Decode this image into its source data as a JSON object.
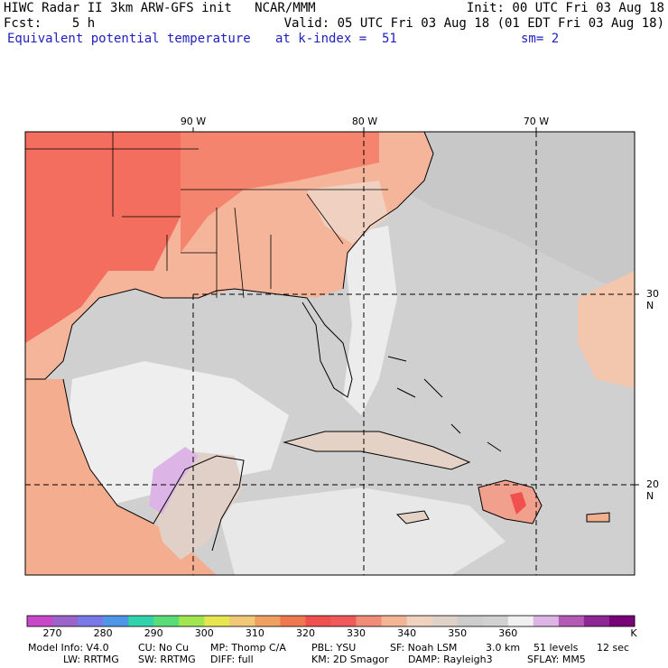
{
  "header": {
    "title_left": "HIWC Radar II 3km ARW-GFS init   NCAR/MMM",
    "init": "Init: 00 UTC Fri 03 Aug 18",
    "fcst": "Fcst:    5 h",
    "valid": "Valid: 05 UTC Fri 03 Aug 18 (01 EDT Fri 03 Aug 18)",
    "field": "Equivalent potential temperature",
    "level": "at k-index =  51",
    "smooth": "sm= 2"
  },
  "map": {
    "lon_labels": [
      "90 W",
      "80 W",
      "70 W"
    ],
    "lat_labels": [
      "30 N",
      "20 N"
    ]
  },
  "colorbar": {
    "labels": [
      "270",
      "280",
      "290",
      "300",
      "310",
      "320",
      "330",
      "340",
      "350",
      "360"
    ],
    "unit": "K",
    "colors": [
      "#c848c8",
      "#9c64c8",
      "#7878e6",
      "#5096e6",
      "#32d2aa",
      "#5adc78",
      "#a0e650",
      "#e6e650",
      "#f0c878",
      "#f0a060",
      "#f07850",
      "#f05050",
      "#f05a5a",
      "#f08c78",
      "#f4b496",
      "#f0d2be",
      "#e1d2c8",
      "#cdcdcd",
      "#d2d2d2",
      "#f0f0f0",
      "#dcb4e6",
      "#b45ab4",
      "#8c2896",
      "#780078"
    ]
  },
  "footer": {
    "line1": [
      "Model Info: V4.0",
      "CU: No Cu",
      "MP: Thomp C/A",
      "PBL: YSU",
      "SF: Noah LSM",
      "3.0 km",
      "51 levels",
      "12 sec"
    ],
    "line2": [
      "LW: RRTMG",
      "SW: RRTMG",
      "DIFF: full",
      "KM: 2D Smagor",
      "DAMP: Rayleigh3",
      "SFLAY: MM5"
    ]
  }
}
